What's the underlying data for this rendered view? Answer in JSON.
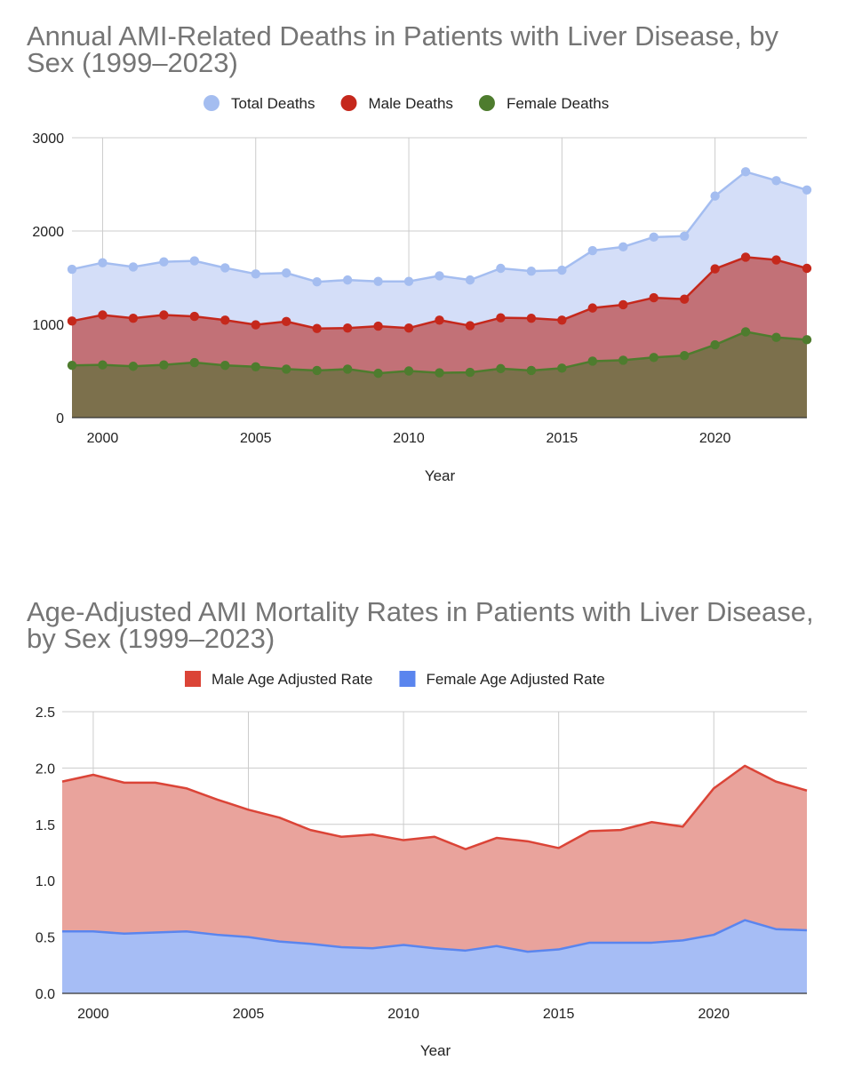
{
  "chart_data": [
    {
      "type": "area",
      "title": "Annual AMI-Related Deaths in Patients with Liver Disease, by Sex (1999–2023)",
      "xlabel": "Year",
      "ylabel": "",
      "xlim": [
        1999,
        2023
      ],
      "ylim": [
        0,
        3000
      ],
      "y_ticks": [
        "0",
        "1000",
        "2000",
        "3000"
      ],
      "x_ticks": [
        "2000",
        "2005",
        "2010",
        "2015",
        "2020"
      ],
      "x_tick_values": [
        2000,
        2005,
        2010,
        2015,
        2020
      ],
      "y_tick_values": [
        0,
        1000,
        2000,
        3000
      ],
      "grid": true,
      "legend_position": "top",
      "markers": true,
      "x": [
        1999,
        2000,
        2001,
        2002,
        2003,
        2004,
        2005,
        2006,
        2007,
        2008,
        2009,
        2010,
        2011,
        2012,
        2013,
        2014,
        2015,
        2016,
        2017,
        2018,
        2019,
        2020,
        2021,
        2022,
        2023
      ],
      "series": [
        {
          "name": "Total Deaths",
          "color": "#a4bdf0",
          "fill": "#d4def8",
          "values": [
            1590,
            1660,
            1615,
            1670,
            1680,
            1605,
            1540,
            1550,
            1455,
            1475,
            1460,
            1460,
            1520,
            1475,
            1600,
            1570,
            1580,
            1790,
            1830,
            1935,
            1945,
            2375,
            2635,
            2540,
            2440
          ]
        },
        {
          "name": "Male Deaths",
          "color": "#c5281c",
          "fill": "#c27177",
          "values": [
            1035,
            1100,
            1065,
            1100,
            1085,
            1045,
            995,
            1030,
            955,
            960,
            980,
            960,
            1045,
            985,
            1070,
            1065,
            1045,
            1175,
            1210,
            1285,
            1270,
            1595,
            1720,
            1690,
            1600
          ]
        },
        {
          "name": "Female Deaths",
          "color": "#4e7c2e",
          "fill": "#7c704c",
          "values": [
            560,
            565,
            550,
            565,
            590,
            560,
            545,
            520,
            505,
            520,
            475,
            500,
            480,
            485,
            525,
            505,
            530,
            605,
            615,
            645,
            665,
            780,
            920,
            860,
            835
          ]
        }
      ]
    },
    {
      "type": "area",
      "title": "Age-Adjusted AMI Mortality Rates in Patients with Liver Disease, by Sex (1999–2023)",
      "xlabel": "Year",
      "ylabel": "",
      "xlim": [
        1999,
        2023
      ],
      "ylim": [
        0,
        2.5
      ],
      "y_ticks": [
        "0.0",
        "0.5",
        "1.0",
        "1.5",
        "2.0",
        "2.5"
      ],
      "x_ticks": [
        "2000",
        "2005",
        "2010",
        "2015",
        "2020"
      ],
      "x_tick_values": [
        2000,
        2005,
        2010,
        2015,
        2020
      ],
      "y_tick_values": [
        0,
        0.5,
        1.0,
        1.5,
        2.0,
        2.5
      ],
      "grid": true,
      "legend_position": "top",
      "markers": false,
      "x": [
        1999,
        2000,
        2001,
        2002,
        2003,
        2004,
        2005,
        2006,
        2007,
        2008,
        2009,
        2010,
        2011,
        2012,
        2013,
        2014,
        2015,
        2016,
        2017,
        2018,
        2019,
        2020,
        2021,
        2022,
        2023
      ],
      "series": [
        {
          "name": "Male Age Adjusted Rate",
          "color": "#db4437",
          "fill": "#e9a39c",
          "values": [
            1.88,
            1.94,
            1.87,
            1.87,
            1.82,
            1.72,
            1.63,
            1.56,
            1.45,
            1.39,
            1.41,
            1.36,
            1.39,
            1.28,
            1.38,
            1.35,
            1.29,
            1.44,
            1.45,
            1.52,
            1.48,
            1.82,
            2.02,
            1.88,
            1.8
          ]
        },
        {
          "name": "Female Age Adjusted Rate",
          "color": "#5a85ee",
          "fill": "#a6bdf5",
          "values": [
            0.55,
            0.55,
            0.53,
            0.54,
            0.55,
            0.52,
            0.5,
            0.46,
            0.44,
            0.41,
            0.4,
            0.43,
            0.4,
            0.38,
            0.42,
            0.37,
            0.39,
            0.45,
            0.45,
            0.45,
            0.47,
            0.52,
            0.65,
            0.57,
            0.56
          ]
        }
      ]
    }
  ]
}
